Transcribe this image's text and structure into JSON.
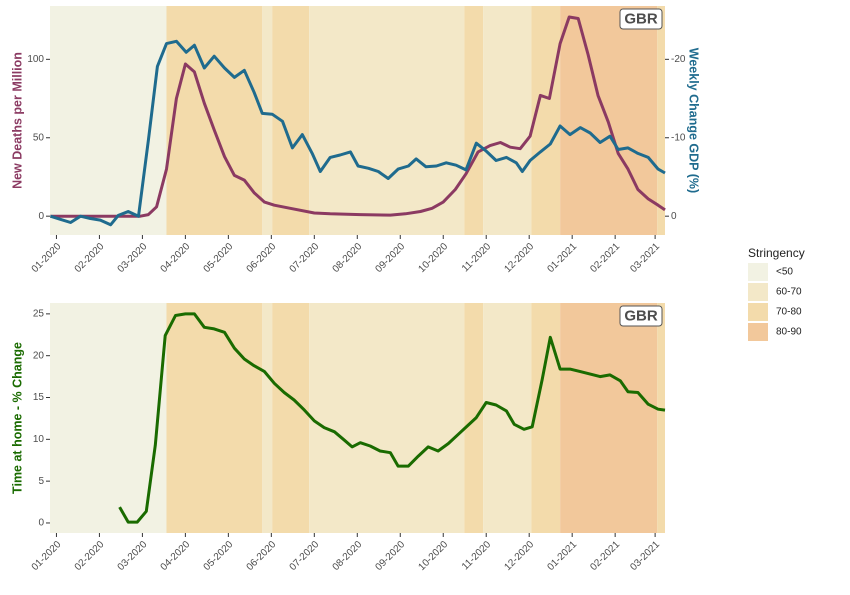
{
  "stringency": {
    "title": "Stringency",
    "levels": [
      {
        "name": "<50",
        "color": "#f2f2e3"
      },
      {
        "name": "60-70",
        "color": "#f3e8c8"
      },
      {
        "name": "70-80",
        "color": "#f3dbab"
      },
      {
        "name": "80-90",
        "color": "#f2c89b"
      }
    ],
    "periods": [
      {
        "start": -0.15,
        "end": 2.56,
        "level": "<50"
      },
      {
        "start": 2.56,
        "end": 4.79,
        "level": "70-80"
      },
      {
        "start": 4.79,
        "end": 5.02,
        "level": "60-70"
      },
      {
        "start": 5.02,
        "end": 5.88,
        "level": "70-80"
      },
      {
        "start": 5.88,
        "end": 9.49,
        "level": "60-70"
      },
      {
        "start": 9.49,
        "end": 9.93,
        "level": "70-80"
      },
      {
        "start": 9.93,
        "end": 11.05,
        "level": "60-70"
      },
      {
        "start": 11.05,
        "end": 11.72,
        "level": "70-80"
      },
      {
        "start": 11.72,
        "end": 13.98,
        "level": "80-90"
      },
      {
        "start": 13.98,
        "end": 14.16,
        "level": "70-80"
      }
    ]
  },
  "chart_data": [
    {
      "type": "line",
      "annotation": "GBR",
      "ylabel": "New Deaths per Million",
      "y2label": "Weekly Change GDP (%)",
      "xlim": [
        -0.15,
        14.16
      ],
      "xticks": [
        {
          "value": 0,
          "label": "01-2020"
        },
        {
          "value": 1,
          "label": "02-2020"
        },
        {
          "value": 2,
          "label": "03-2020"
        },
        {
          "value": 3,
          "label": "04-2020"
        },
        {
          "value": 4,
          "label": "05-2020"
        },
        {
          "value": 5,
          "label": "06-2020"
        },
        {
          "value": 6,
          "label": "07-2020"
        },
        {
          "value": 7,
          "label": "08-2020"
        },
        {
          "value": 8,
          "label": "09-2020"
        },
        {
          "value": 9,
          "label": "10-2020"
        },
        {
          "value": 10,
          "label": "11-2020"
        },
        {
          "value": 11,
          "label": "12-2020"
        },
        {
          "value": 12,
          "label": "01-2021"
        },
        {
          "value": 13,
          "label": "02-2021"
        },
        {
          "value": 13.93,
          "label": "03-2021"
        }
      ],
      "ylim": [
        -12,
        134
      ],
      "yticks": [
        0,
        50,
        100
      ],
      "y2lim": [
        2.4,
        -26.8
      ],
      "y2ticks": [
        0,
        -10,
        -20
      ],
      "series": [
        {
          "color": "#8b3a62",
          "axis": "y",
          "x": [
            -0.14,
            1.02,
            1.95,
            2.14,
            2.33,
            2.56,
            2.79,
            3.0,
            3.21,
            3.44,
            3.67,
            3.91,
            4.14,
            4.37,
            4.6,
            4.84,
            5.07,
            5.44,
            6.0,
            6.37,
            7.07,
            7.77,
            8.12,
            8.47,
            8.74,
            9.0,
            9.28,
            9.53,
            9.81,
            10.09,
            10.33,
            10.56,
            10.79,
            11.02,
            11.26,
            11.47,
            11.72,
            11.93,
            12.14,
            12.37,
            12.6,
            12.84,
            13.07,
            13.3,
            13.53,
            13.77,
            14.0,
            14.16
          ],
          "values": [
            0,
            0,
            0,
            1,
            6,
            30,
            75,
            97,
            92,
            72,
            55,
            38,
            26,
            23,
            15,
            9,
            7,
            5,
            2,
            1.5,
            1,
            0.7,
            1.5,
            3,
            5,
            9,
            17,
            27,
            41,
            45,
            47,
            44,
            43,
            51,
            77,
            75,
            110,
            127,
            126,
            103,
            77,
            60,
            40,
            30,
            17,
            11,
            7,
            4
          ]
        },
        {
          "color": "#1f6b8e",
          "axis": "y2",
          "x": [
            -0.14,
            0.09,
            0.33,
            0.56,
            0.79,
            1.02,
            1.26,
            1.44,
            1.67,
            1.91,
            2.14,
            2.35,
            2.56,
            2.79,
            3.02,
            3.21,
            3.44,
            3.67,
            3.91,
            4.14,
            4.37,
            4.6,
            4.79,
            5.02,
            5.26,
            5.49,
            5.72,
            5.95,
            6.14,
            6.37,
            6.6,
            6.84,
            7.02,
            7.26,
            7.49,
            7.72,
            7.95,
            8.19,
            8.37,
            8.6,
            8.84,
            9.07,
            9.3,
            9.53,
            9.77,
            10.0,
            10.23,
            10.47,
            10.7,
            10.84,
            11.02,
            11.26,
            11.49,
            11.72,
            11.95,
            12.19,
            12.42,
            12.65,
            12.88,
            13.07,
            13.3,
            13.53,
            13.77,
            14.0,
            14.16
          ],
          "values": [
            0,
            0.4,
            0.8,
            0,
            0.3,
            0.5,
            1.1,
            -0.1,
            -0.6,
            0,
            -9.7,
            -19.1,
            -22,
            -22.3,
            -20.9,
            -21.8,
            -18.9,
            -20.4,
            -18.9,
            -17.7,
            -18.6,
            -15.8,
            -13.1,
            -13,
            -12.1,
            -8.7,
            -10.4,
            -8,
            -5.7,
            -7.5,
            -7.8,
            -8.2,
            -6.4,
            -6.1,
            -5.7,
            -4.8,
            -6,
            -6.4,
            -7.3,
            -6.3,
            -6.4,
            -6.8,
            -6.5,
            -5.9,
            -9.3,
            -8.3,
            -7.1,
            -7.5,
            -6.8,
            -5.7,
            -7.1,
            -8.2,
            -9.2,
            -11.5,
            -10.4,
            -11.3,
            -10.6,
            -9.4,
            -10.2,
            -8.5,
            -8.7,
            -8,
            -7.5,
            -6,
            -5.5
          ]
        }
      ]
    },
    {
      "type": "line",
      "annotation": "GBR",
      "ylabel": "Time at home - % Change",
      "xlim": [
        -0.15,
        14.16
      ],
      "xticks": [
        {
          "value": 0,
          "label": "01-2020"
        },
        {
          "value": 1,
          "label": "02-2020"
        },
        {
          "value": 2,
          "label": "03-2020"
        },
        {
          "value": 3,
          "label": "04-2020"
        },
        {
          "value": 4,
          "label": "05-2020"
        },
        {
          "value": 5,
          "label": "06-2020"
        },
        {
          "value": 6,
          "label": "07-2020"
        },
        {
          "value": 7,
          "label": "08-2020"
        },
        {
          "value": 8,
          "label": "09-2020"
        },
        {
          "value": 9,
          "label": "10-2020"
        },
        {
          "value": 10,
          "label": "11-2020"
        },
        {
          "value": 11,
          "label": "12-2020"
        },
        {
          "value": 12,
          "label": "01-2021"
        },
        {
          "value": 13,
          "label": "02-2021"
        },
        {
          "value": 13.93,
          "label": "03-2021"
        }
      ],
      "ylim": [
        -1.2,
        26.3
      ],
      "yticks": [
        0,
        5,
        10,
        15,
        20,
        25
      ],
      "series": [
        {
          "color": "#1a6b00",
          "axis": "y",
          "x": [
            1.47,
            1.67,
            1.88,
            2.09,
            2.3,
            2.53,
            2.77,
            3.0,
            3.21,
            3.44,
            3.67,
            3.91,
            4.14,
            4.37,
            4.6,
            4.84,
            5.07,
            5.3,
            5.53,
            5.77,
            6.0,
            6.23,
            6.47,
            6.7,
            6.88,
            7.07,
            7.3,
            7.53,
            7.77,
            7.95,
            8.19,
            8.42,
            8.65,
            8.88,
            9.12,
            9.35,
            9.58,
            9.77,
            10.0,
            10.23,
            10.47,
            10.65,
            10.88,
            11.07,
            11.3,
            11.49,
            11.72,
            11.95,
            12.19,
            12.42,
            12.65,
            12.88,
            13.12,
            13.3,
            13.53,
            13.77,
            14.0,
            14.16
          ],
          "values": [
            1.9,
            0.1,
            0.1,
            1.4,
            9.3,
            22.4,
            24.8,
            25,
            25,
            23.4,
            23.2,
            22.8,
            20.9,
            19.6,
            18.8,
            18.1,
            16.7,
            15.6,
            14.7,
            13.5,
            12.2,
            11.4,
            10.9,
            9.9,
            9.1,
            9.6,
            9.2,
            8.6,
            8.4,
            6.8,
            6.8,
            8,
            9.1,
            8.6,
            9.5,
            10.6,
            11.7,
            12.6,
            14.4,
            14.1,
            13.4,
            11.8,
            11.2,
            11.5,
            17.1,
            22.2,
            18.4,
            18.4,
            18.1,
            17.8,
            17.5,
            17.7,
            17,
            15.7,
            15.6,
            14.2,
            13.6,
            13.5
          ]
        }
      ]
    }
  ]
}
